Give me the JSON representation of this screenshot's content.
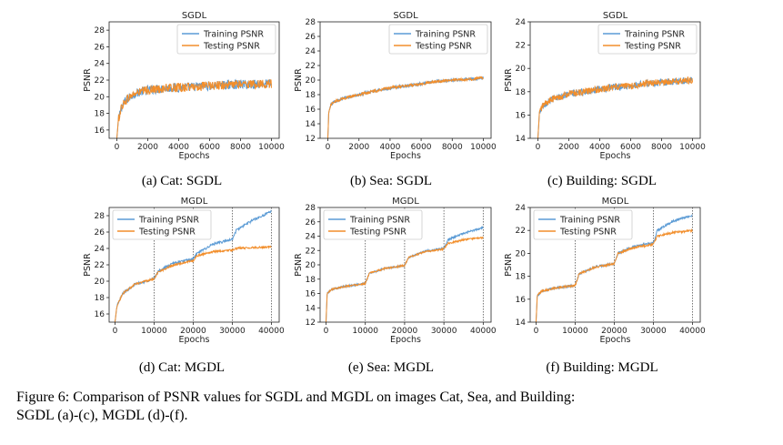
{
  "colors": {
    "train": "#5b9bd5",
    "test": "#f28e2b"
  },
  "caption": {
    "line1": "Figure 6: Comparison of PSNR values for SGDL and MGDL on images Cat, Sea, and Building:",
    "line2": "SGDL (a)-(c), MGDL (d)-(f)."
  },
  "chart_data": [
    {
      "id": "a",
      "type": "line",
      "title": "SGDL",
      "subcaption": "(a) Cat: SGDL",
      "xlabel": "Epochs",
      "ylabel": "PSNR",
      "xlim": [
        -500,
        10500
      ],
      "ylim": [
        15,
        29
      ],
      "xticks": [
        0,
        2000,
        4000,
        6000,
        8000,
        10000
      ],
      "yticks": [
        16,
        18,
        20,
        22,
        24,
        26,
        28
      ],
      "legend": {
        "entries": [
          "Training PSNR",
          "Testing PSNR"
        ],
        "loc": "upper-right"
      },
      "vlines": [],
      "series": [
        {
          "name": "Training PSNR",
          "x": [
            0,
            100,
            300,
            600,
            1000,
            1500,
            2000,
            3000,
            4000,
            5000,
            6000,
            7000,
            8000,
            9000,
            10000
          ],
          "y": [
            15.0,
            17.2,
            18.8,
            19.6,
            20.2,
            20.6,
            20.8,
            21.0,
            21.1,
            21.2,
            21.3,
            21.4,
            21.5,
            21.5,
            21.6
          ],
          "noise": 0.55
        },
        {
          "name": "Testing PSNR",
          "x": [
            0,
            100,
            300,
            600,
            1000,
            1500,
            2000,
            3000,
            4000,
            5000,
            6000,
            7000,
            8000,
            9000,
            10000
          ],
          "y": [
            15.0,
            17.2,
            18.8,
            19.6,
            20.2,
            20.6,
            20.8,
            21.0,
            21.1,
            21.2,
            21.3,
            21.4,
            21.5,
            21.5,
            21.6
          ],
          "noise": 0.55
        }
      ]
    },
    {
      "id": "b",
      "type": "line",
      "title": "SGDL",
      "subcaption": "(b) Sea: SGDL",
      "xlabel": "Epochs",
      "ylabel": "PSNR",
      "xlim": [
        -500,
        10500
      ],
      "ylim": [
        12,
        28
      ],
      "xticks": [
        0,
        2000,
        4000,
        6000,
        8000,
        10000
      ],
      "yticks": [
        12,
        14,
        16,
        18,
        20,
        22,
        24,
        26,
        28
      ],
      "legend": {
        "entries": [
          "Training PSNR",
          "Testing PSNR"
        ],
        "loc": "upper-right"
      },
      "vlines": [],
      "series": [
        {
          "name": "Training PSNR",
          "x": [
            0,
            50,
            200,
            500,
            1000,
            2000,
            3000,
            4000,
            5000,
            6000,
            7000,
            8000,
            9000,
            10000
          ],
          "y": [
            12.0,
            15.5,
            16.7,
            17.1,
            17.5,
            18.0,
            18.5,
            18.9,
            19.2,
            19.5,
            19.8,
            20.0,
            20.1,
            20.3
          ],
          "noise": 0.2
        },
        {
          "name": "Testing PSNR",
          "x": [
            0,
            50,
            200,
            500,
            1000,
            2000,
            3000,
            4000,
            5000,
            6000,
            7000,
            8000,
            9000,
            10000
          ],
          "y": [
            12.0,
            15.5,
            16.7,
            17.1,
            17.5,
            18.0,
            18.5,
            18.9,
            19.2,
            19.5,
            19.8,
            20.0,
            20.1,
            20.3
          ],
          "noise": 0.2
        }
      ]
    },
    {
      "id": "c",
      "type": "line",
      "title": "SGDL",
      "subcaption": "(c) Building: SGDL",
      "xlabel": "Epochs",
      "ylabel": "PSNR",
      "xlim": [
        -500,
        10500
      ],
      "ylim": [
        14,
        24
      ],
      "xticks": [
        0,
        2000,
        4000,
        6000,
        8000,
        10000
      ],
      "yticks": [
        14,
        16,
        18,
        20,
        22,
        24
      ],
      "legend": {
        "entries": [
          "Training PSNR",
          "Testing PSNR"
        ],
        "loc": "upper-right"
      },
      "vlines": [],
      "series": [
        {
          "name": "Training PSNR",
          "x": [
            0,
            100,
            300,
            600,
            1000,
            2000,
            3000,
            4000,
            5000,
            6000,
            7000,
            8000,
            9000,
            10000
          ],
          "y": [
            14.0,
            16.2,
            16.8,
            17.1,
            17.4,
            17.8,
            18.0,
            18.2,
            18.4,
            18.5,
            18.7,
            18.8,
            18.9,
            19.0
          ],
          "noise": 0.3
        },
        {
          "name": "Testing PSNR",
          "x": [
            0,
            100,
            300,
            600,
            1000,
            2000,
            3000,
            4000,
            5000,
            6000,
            7000,
            8000,
            9000,
            10000
          ],
          "y": [
            14.0,
            16.2,
            16.8,
            17.1,
            17.4,
            17.8,
            18.0,
            18.2,
            18.4,
            18.5,
            18.7,
            18.8,
            18.9,
            19.0
          ],
          "noise": 0.3
        }
      ]
    },
    {
      "id": "d",
      "type": "line",
      "title": "MGDL",
      "subcaption": "(d) Cat: MGDL",
      "xlabel": "Epochs",
      "ylabel": "PSNR",
      "xlim": [
        -1500,
        42000
      ],
      "ylim": [
        15,
        29
      ],
      "xticks": [
        0,
        10000,
        20000,
        30000,
        40000
      ],
      "yticks": [
        16,
        18,
        20,
        22,
        24,
        26,
        28
      ],
      "legend": {
        "entries": [
          "Training PSNR",
          "Testing PSNR"
        ],
        "loc": "upper-left"
      },
      "vlines": [
        10000,
        20000,
        30000,
        40000
      ],
      "series": [
        {
          "name": "Training PSNR",
          "x": [
            0,
            500,
            2000,
            5000,
            9999,
            10000,
            11000,
            15000,
            19999,
            20000,
            21000,
            25000,
            29999,
            30000,
            31000,
            35000,
            40000
          ],
          "y": [
            15.0,
            17.0,
            18.5,
            19.6,
            20.3,
            20.3,
            21.2,
            22.2,
            22.7,
            22.7,
            23.4,
            24.5,
            25.1,
            25.1,
            26.2,
            27.4,
            28.5
          ],
          "noise": 0.15
        },
        {
          "name": "Testing PSNR",
          "x": [
            0,
            500,
            2000,
            5000,
            9999,
            10000,
            11000,
            15000,
            19999,
            20000,
            21000,
            25000,
            29999,
            30000,
            31000,
            35000,
            40000
          ],
          "y": [
            15.0,
            17.0,
            18.5,
            19.6,
            20.3,
            20.3,
            21.1,
            22.0,
            22.5,
            22.5,
            23.1,
            23.6,
            23.8,
            23.8,
            24.0,
            24.1,
            24.2
          ],
          "noise": 0.12
        }
      ]
    },
    {
      "id": "e",
      "type": "line",
      "title": "MGDL",
      "subcaption": "(e) Sea: MGDL",
      "xlabel": "Epochs",
      "ylabel": "PSNR",
      "xlim": [
        -1500,
        42000
      ],
      "ylim": [
        12,
        28
      ],
      "xticks": [
        0,
        10000,
        20000,
        30000,
        40000
      ],
      "yticks": [
        12,
        14,
        16,
        18,
        20,
        22,
        24,
        26,
        28
      ],
      "legend": {
        "entries": [
          "Training PSNR",
          "Testing PSNR"
        ],
        "loc": "upper-left"
      },
      "vlines": [
        10000,
        20000,
        30000,
        40000
      ],
      "series": [
        {
          "name": "Training PSNR",
          "x": [
            0,
            300,
            1500,
            5000,
            9999,
            10000,
            11000,
            15000,
            19999,
            20000,
            21000,
            25000,
            29999,
            30000,
            31000,
            35000,
            40000
          ],
          "y": [
            12.0,
            16.0,
            16.6,
            17.0,
            17.4,
            17.4,
            18.8,
            19.5,
            19.9,
            19.9,
            21.0,
            21.9,
            22.3,
            22.3,
            23.5,
            24.4,
            25.2
          ],
          "noise": 0.12
        },
        {
          "name": "Testing PSNR",
          "x": [
            0,
            300,
            1500,
            5000,
            9999,
            10000,
            11000,
            15000,
            19999,
            20000,
            21000,
            25000,
            29999,
            30000,
            31000,
            35000,
            40000
          ],
          "y": [
            12.0,
            16.0,
            16.6,
            17.0,
            17.4,
            17.4,
            18.8,
            19.5,
            19.9,
            19.9,
            21.0,
            21.8,
            22.2,
            22.2,
            23.0,
            23.5,
            23.8
          ],
          "noise": 0.12
        }
      ]
    },
    {
      "id": "f",
      "type": "line",
      "title": "MGDL",
      "subcaption": "(f) Building: MGDL",
      "xlabel": "Epochs",
      "ylabel": "PSNR",
      "xlim": [
        -1500,
        42000
      ],
      "ylim": [
        14,
        24
      ],
      "xticks": [
        0,
        10000,
        20000,
        30000,
        40000
      ],
      "yticks": [
        14,
        16,
        18,
        20,
        22,
        24
      ],
      "legend": {
        "entries": [
          "Training PSNR",
          "Testing PSNR"
        ],
        "loc": "upper-left"
      },
      "vlines": [
        10000,
        20000,
        30000,
        40000
      ],
      "series": [
        {
          "name": "Training PSNR",
          "x": [
            0,
            300,
            1500,
            5000,
            9999,
            10000,
            11000,
            15000,
            19999,
            20000,
            21000,
            25000,
            29999,
            30000,
            31000,
            35000,
            40000
          ],
          "y": [
            14.0,
            16.3,
            16.7,
            17.0,
            17.2,
            17.2,
            18.2,
            18.8,
            19.1,
            19.1,
            20.0,
            20.6,
            20.9,
            20.9,
            22.0,
            22.8,
            23.3
          ],
          "noise": 0.1
        },
        {
          "name": "Testing PSNR",
          "x": [
            0,
            300,
            1500,
            5000,
            9999,
            10000,
            11000,
            15000,
            19999,
            20000,
            21000,
            25000,
            29999,
            30000,
            31000,
            35000,
            40000
          ],
          "y": [
            14.0,
            16.3,
            16.7,
            17.0,
            17.2,
            17.2,
            18.2,
            18.8,
            19.1,
            19.1,
            20.0,
            20.5,
            20.8,
            20.8,
            21.5,
            21.8,
            22.0
          ],
          "noise": 0.1
        }
      ]
    }
  ]
}
